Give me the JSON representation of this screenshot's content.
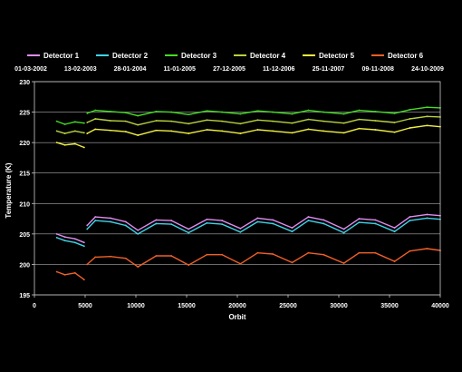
{
  "chart_data": {
    "type": "line",
    "xlabel": "Orbit",
    "ylabel": "Temperature (K)",
    "xlim": [
      0,
      40000
    ],
    "ylim": [
      195,
      230
    ],
    "x_ticks": [
      0,
      5000,
      10000,
      15000,
      20000,
      25000,
      30000,
      35000,
      40000
    ],
    "y_ticks": [
      195,
      200,
      205,
      210,
      215,
      220,
      225,
      230
    ],
    "top_date_labels": [
      "01-03-2002",
      "13-02-2003",
      "28-01-2004",
      "11-01-2005",
      "27-12-2005",
      "11-12-2006",
      "25-11-2007",
      "09-11-2008",
      "24-10-2009"
    ],
    "grid": "horizontal",
    "legend_position": "top",
    "series": [
      {
        "name": "Detector 1",
        "color": "#e08cf0",
        "x": [
          2200,
          3000,
          4000,
          4900,
          5200,
          6000,
          7500,
          9000,
          10200,
          12000,
          13500,
          15200,
          17000,
          18500,
          20300,
          22000,
          23500,
          25400,
          27000,
          28500,
          30500,
          32000,
          33600,
          35500,
          37000,
          38700,
          40000
        ],
        "y": [
          205.0,
          204.5,
          204.2,
          203.6,
          206.4,
          207.8,
          207.6,
          207.0,
          205.6,
          207.3,
          207.2,
          205.8,
          207.4,
          207.2,
          205.9,
          207.6,
          207.3,
          206.0,
          207.8,
          207.3,
          205.8,
          207.5,
          207.3,
          206.0,
          207.8,
          208.2,
          208.0
        ]
      },
      {
        "name": "Detector 2",
        "color": "#40d4e8",
        "x": [
          2200,
          3000,
          4000,
          4900,
          5200,
          6000,
          7500,
          9000,
          10200,
          12000,
          13500,
          15200,
          17000,
          18500,
          20300,
          22000,
          23500,
          25400,
          27000,
          28500,
          30500,
          32000,
          33600,
          35500,
          37000,
          38700,
          40000
        ],
        "y": [
          204.4,
          203.9,
          203.6,
          203.0,
          205.8,
          207.2,
          207.0,
          206.4,
          205.0,
          206.7,
          206.6,
          205.2,
          206.8,
          206.6,
          205.3,
          207.0,
          206.7,
          205.4,
          207.2,
          206.7,
          205.2,
          206.9,
          206.7,
          205.4,
          207.2,
          207.6,
          207.4
        ]
      },
      {
        "name": "Detector 3",
        "color": "#44dd22",
        "x": [
          2200,
          3000,
          4000,
          4900,
          5200,
          6000,
          7500,
          9000,
          10200,
          12000,
          13500,
          15200,
          17000,
          18500,
          20300,
          22000,
          23500,
          25400,
          27000,
          28500,
          30500,
          32000,
          33600,
          35500,
          37000,
          38700,
          40000
        ],
        "y": [
          223.5,
          223.0,
          223.4,
          223.2,
          224.8,
          225.3,
          225.1,
          224.9,
          224.4,
          225.1,
          225.0,
          224.6,
          225.2,
          225.0,
          224.7,
          225.2,
          225.0,
          224.7,
          225.3,
          225.0,
          224.7,
          225.3,
          225.1,
          224.8,
          225.4,
          225.8,
          225.7
        ]
      },
      {
        "name": "Detector 4",
        "color": "#b8d23c",
        "x": [
          2200,
          3000,
          4000,
          4900,
          5200,
          6000,
          7500,
          9000,
          10200,
          12000,
          13500,
          15200,
          17000,
          18500,
          20300,
          22000,
          23500,
          25400,
          27000,
          28500,
          30500,
          32000,
          33600,
          35500,
          37000,
          38700,
          40000
        ],
        "y": [
          221.9,
          221.5,
          221.9,
          221.6,
          223.3,
          223.9,
          223.6,
          223.5,
          222.9,
          223.6,
          223.5,
          223.1,
          223.7,
          223.5,
          223.1,
          223.7,
          223.5,
          223.2,
          223.8,
          223.5,
          223.2,
          223.8,
          223.6,
          223.3,
          223.9,
          224.3,
          224.2
        ]
      },
      {
        "name": "Detector 5",
        "color": "#f0f040",
        "x": [
          2200,
          3000,
          4000,
          4900,
          5200,
          6000,
          7500,
          9000,
          10200,
          12000,
          13500,
          15200,
          17000,
          18500,
          20300,
          22000,
          23500,
          25400,
          27000,
          28500,
          30500,
          32000,
          33600,
          35500,
          37000,
          38700,
          40000
        ],
        "y": [
          220.0,
          219.6,
          219.8,
          219.2,
          221.5,
          222.2,
          222.0,
          221.8,
          221.2,
          222.0,
          221.9,
          221.5,
          222.1,
          221.9,
          221.5,
          222.1,
          221.9,
          221.6,
          222.2,
          221.9,
          221.6,
          222.3,
          222.1,
          221.7,
          222.4,
          222.8,
          222.6
        ]
      },
      {
        "name": "Detector 6",
        "color": "#f06028",
        "x": [
          2200,
          3000,
          4000,
          4900,
          5200,
          6000,
          7500,
          9000,
          10200,
          12000,
          13500,
          15200,
          17000,
          18500,
          20300,
          22000,
          23500,
          25400,
          27000,
          28500,
          30500,
          32000,
          33600,
          35500,
          37000,
          38700,
          40000
        ],
        "y": [
          198.8,
          198.3,
          198.6,
          197.5,
          200.0,
          201.2,
          201.3,
          201.0,
          199.6,
          201.4,
          201.4,
          199.9,
          201.6,
          201.6,
          200.1,
          201.9,
          201.7,
          200.3,
          201.9,
          201.6,
          200.2,
          201.9,
          201.9,
          200.5,
          202.2,
          202.6,
          202.3
        ]
      }
    ]
  }
}
